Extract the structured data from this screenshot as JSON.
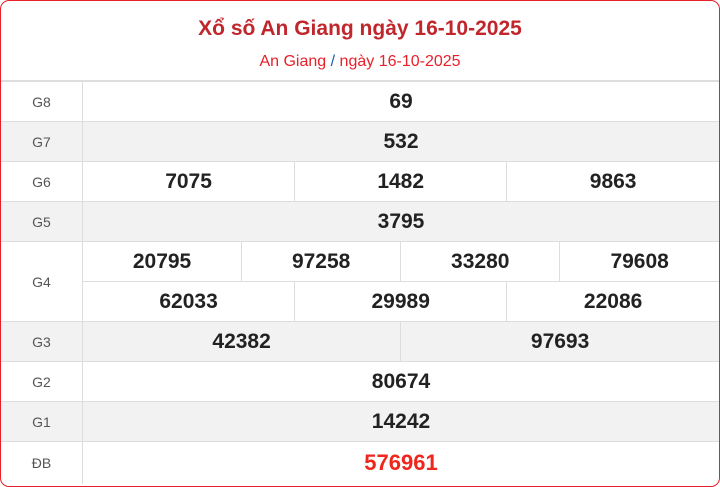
{
  "header": {
    "title": "Xổ số An Giang ngày 16-10-2025",
    "breadcrumb_province": "An Giang",
    "breadcrumb_sep": "/",
    "breadcrumb_date": "ngày 16-10-2025"
  },
  "prizes": {
    "g8": {
      "label": "G8",
      "numbers": [
        "69"
      ]
    },
    "g7": {
      "label": "G7",
      "numbers": [
        "532"
      ]
    },
    "g6": {
      "label": "G6",
      "numbers": [
        "7075",
        "1482",
        "9863"
      ]
    },
    "g5": {
      "label": "G5",
      "numbers": [
        "3795"
      ]
    },
    "g4": {
      "label": "G4",
      "numbers": [
        "20795",
        "97258",
        "33280",
        "79608",
        "62033",
        "29989",
        "22086"
      ]
    },
    "g3": {
      "label": "G3",
      "numbers": [
        "42382",
        "97693"
      ]
    },
    "g2": {
      "label": "G2",
      "numbers": [
        "80674"
      ]
    },
    "g1": {
      "label": "G1",
      "numbers": [
        "14242"
      ]
    },
    "db": {
      "label": "ĐB",
      "numbers": [
        "576961"
      ]
    }
  },
  "colors": {
    "title": "#c0272d",
    "special": "#f0261c",
    "border": "#e8202a"
  }
}
